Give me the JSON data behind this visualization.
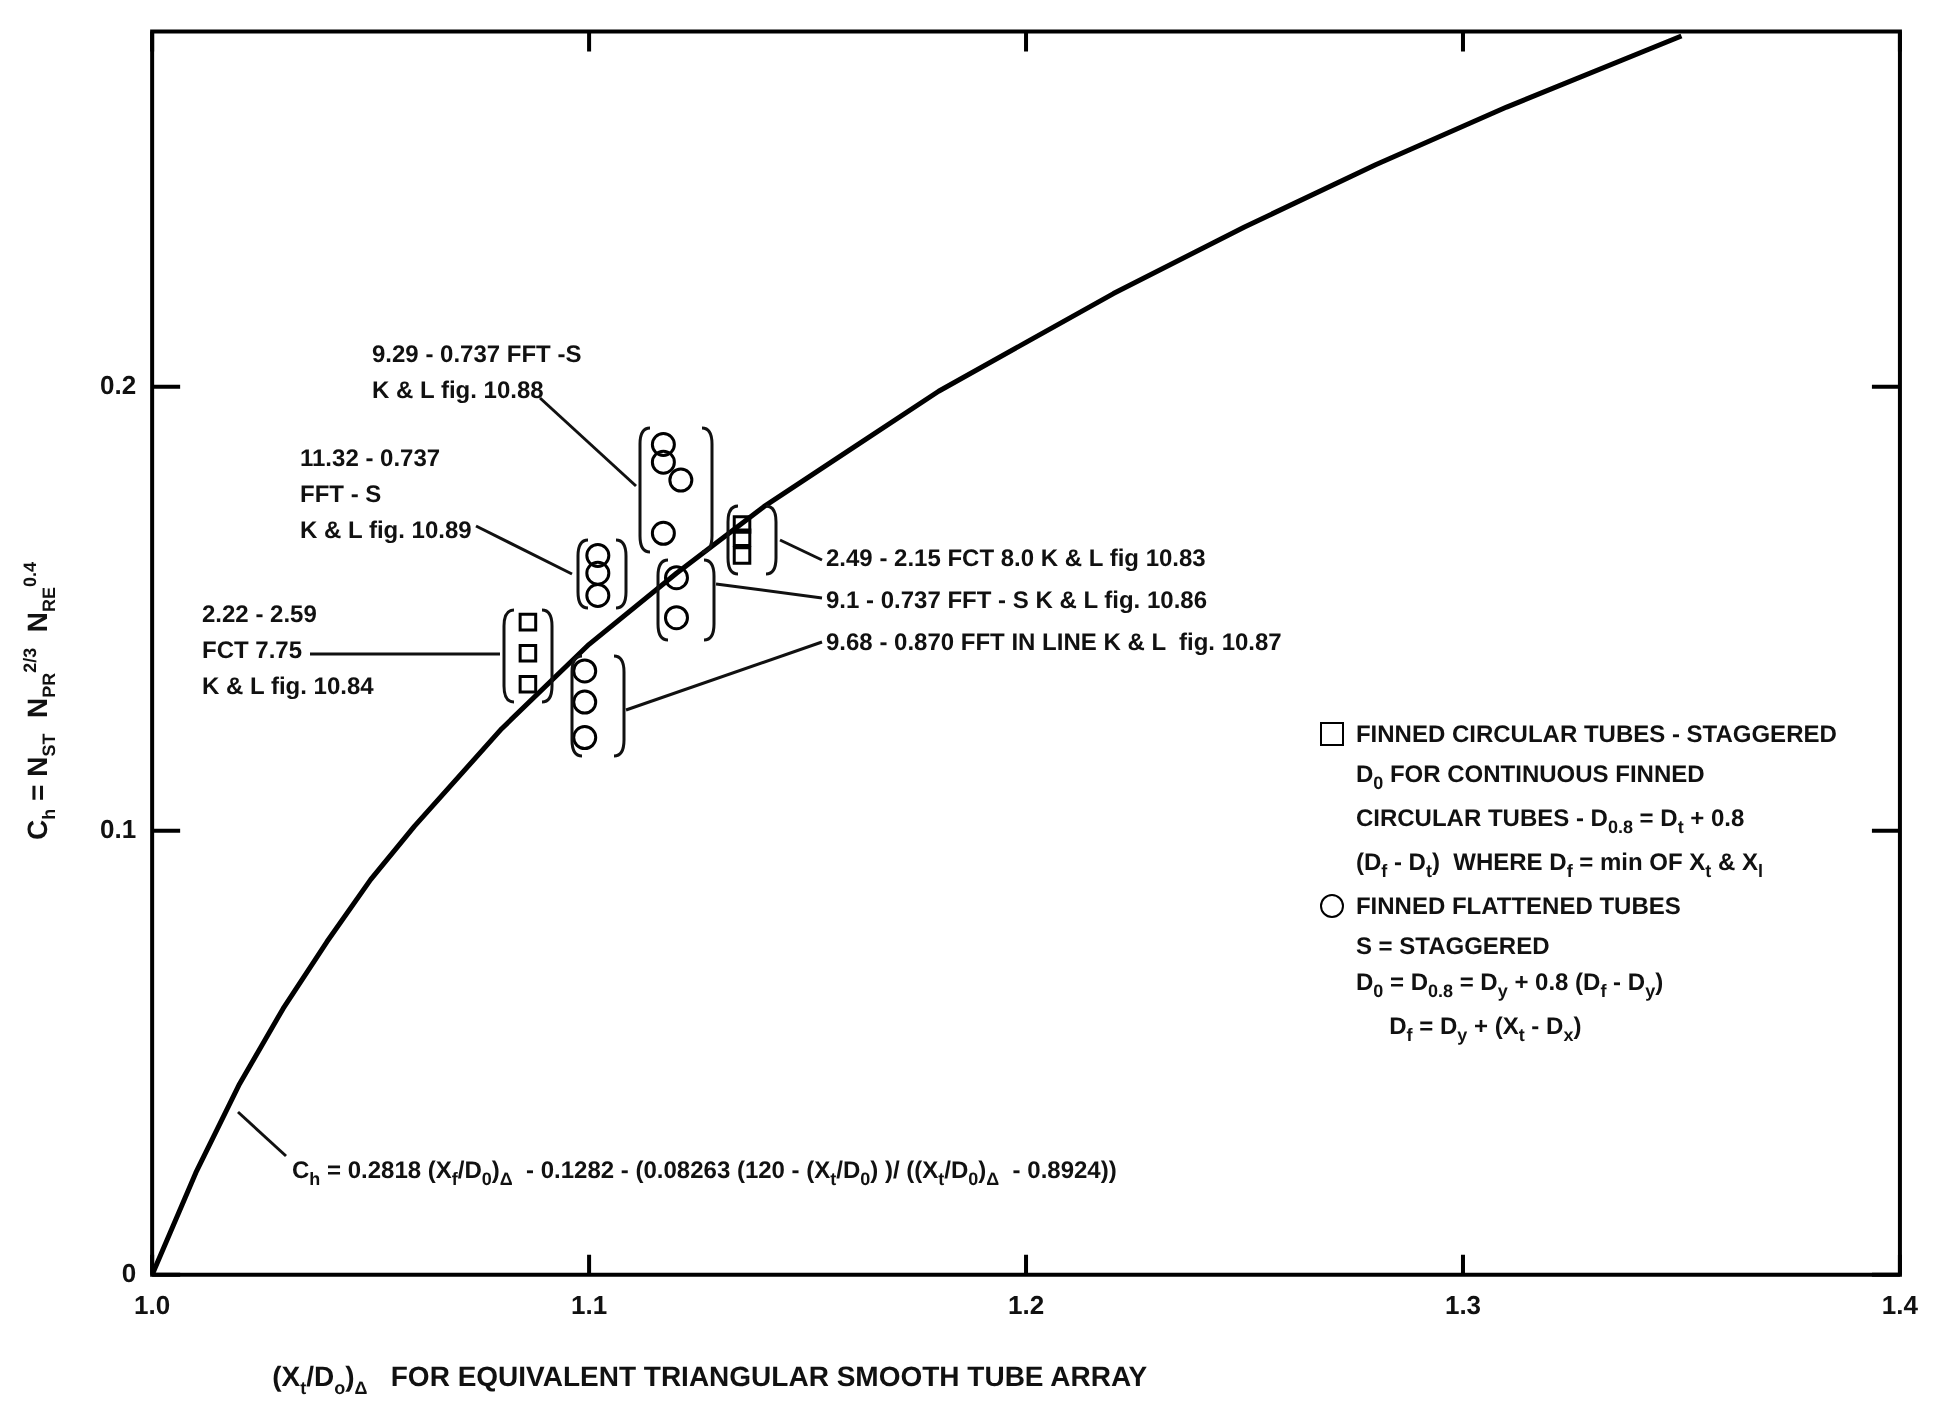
{
  "chart_data": {
    "type": "scatter",
    "xlabel": "(X$_{t}$/D$_{o}$)$_{Δ}$   FOR EQUIVALENT TRIANGULAR SMOOTH TUBE ARRAY",
    "ylabel": "C$_{h}$ = N$_{ST}$  N$_{PR}$$^{2/3}$  N$_{RE}$$^{0.4}$",
    "xlim": [
      1.0,
      1.4
    ],
    "xticks": [
      {
        "value": 1,
        "label": "1.0"
      },
      1.1,
      1.2,
      1.3,
      1.4
    ],
    "ylim": [
      0,
      0.28
    ],
    "yticks": [
      0,
      0.1,
      0.2
    ],
    "grid": false,
    "legend": "right",
    "series": [
      {
        "type": "line",
        "color": "#000000",
        "marker": "none",
        "line_style": "solid",
        "x": [
          1.0,
          1.01,
          1.02,
          1.03,
          1.04,
          1.05,
          1.06,
          1.08,
          1.1,
          1.12,
          1.14,
          1.16,
          1.18,
          1.2,
          1.22,
          1.25,
          1.28,
          1.31,
          1.35
        ],
        "values": [
          0,
          0.023,
          0.043,
          0.06,
          0.075,
          0.089,
          0.101,
          0.123,
          0.142,
          0.158,
          0.173,
          0.186,
          0.199,
          0.21,
          0.221,
          0.236,
          0.25,
          0.263,
          0.279
        ]
      },
      {
        "name": "FINNED CIRCULAR TUBES - STAGGERED",
        "color": "#000000",
        "marker": "square",
        "x": [
          1.086,
          1.086,
          1.086,
          1.135,
          1.135,
          1.135
        ],
        "values": [
          0.147,
          0.14,
          0.133,
          0.169,
          0.166,
          0.162
        ]
      },
      {
        "name": "FINNED FLATTENED TUBES",
        "color": "#000000",
        "marker": "circle",
        "x": [
          1.099,
          1.099,
          1.099,
          1.102,
          1.102,
          1.102,
          1.117,
          1.117,
          1.121,
          1.117,
          1.12,
          1.12
        ],
        "values": [
          0.136,
          0.129,
          0.121,
          0.162,
          0.158,
          0.153,
          0.187,
          0.183,
          0.179,
          0.167,
          0.157,
          0.148
        ]
      }
    ],
    "annotations": [
      "9.29 - 0.737 FFT -S\nK & L fig. 10.88",
      "11.32 - 0.737\nFFT - S\nK & L fig. 10.89",
      "2.22 - 2.59\nFCT 7.75\nK & L fig. 10.84",
      "2.49 - 2.15 FCT 8.0 K & L fig 10.83",
      "9.1 - 0.737 FFT - S K & L fig. 10.86",
      "9.68 - 0.870 FFT IN LINE K & L  fig. 10.87",
      "C$_{h}$ = 0.2818 (X$_{f}$/D$_{0}$)$_{Δ}$  - 0.1282 - (0.08263 (120 - (X$_{t}$/D$_{0}$) )/ ((X$_{t}$/D$_{0}$)$_{Δ}$  - 0.8924))",
      "D$_{0}$ FOR CONTINUOUS FINNED\nCIRCULAR TUBES - D$_{0.8}$ = D$_{t}$ + 0.8\n(D$_{f}$ - D$_{t}$)  WHERE D$_{f}$ = min OF X$_{t}$ & X$_{l}$",
      "S = STAGGERED\nD$_{0}$ = D$_{0.8}$ = D$_{y}$ + 0.8 (D$_{f}$ - D$_{y}$)\n     D$_{f}$ = D$_{y}$ + (X$_{t}$ - D$_{x}$)"
    ]
  }
}
